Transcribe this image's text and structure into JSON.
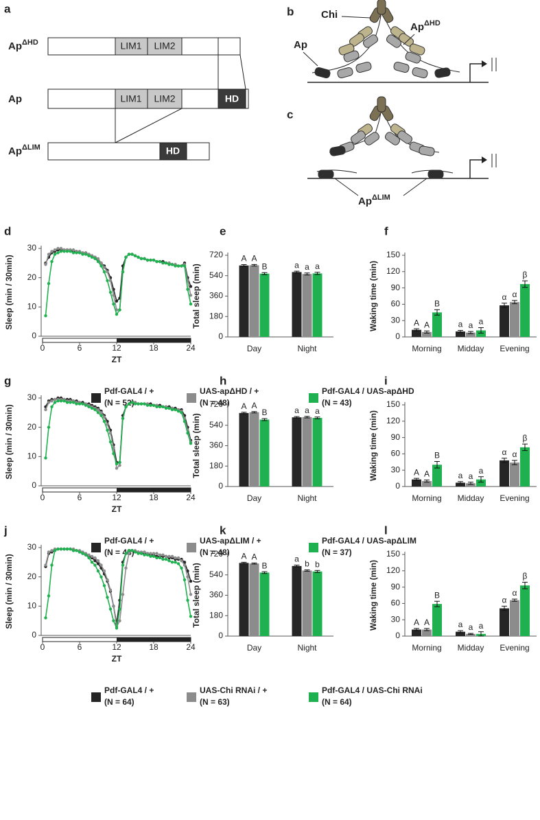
{
  "diagram": {
    "a": {
      "panel": "a",
      "constructs": [
        {
          "name": "Ap",
          "sup": "ΔHD",
          "domains": [
            "LIM1",
            "LIM2"
          ]
        },
        {
          "name": "Ap",
          "domains": [
            "LIM1",
            "LIM2",
            "HD"
          ]
        },
        {
          "name": "Ap",
          "sup": "ΔLIM",
          "domains": [
            "HD"
          ]
        }
      ]
    },
    "b": {
      "panel": "b",
      "chi": "Chi",
      "ap": "Ap",
      "ap_dhd": {
        "name": "Ap",
        "sup": "ΔHD"
      }
    },
    "c": {
      "panel": "c",
      "ap_dlim": {
        "name": "Ap",
        "sup": "ΔLIM"
      }
    }
  },
  "chart_data": [
    {
      "type": "line",
      "panel": "d",
      "ylabel": "Sleep (min / 30min)",
      "xlabel": "ZT",
      "xlim": [
        0,
        24
      ],
      "xticks": [
        0,
        6,
        12,
        18,
        24
      ],
      "ylim": [
        0,
        30
      ],
      "yticks": [
        0,
        10,
        20,
        30
      ],
      "dark_phase": [
        12,
        24
      ],
      "x": [
        0.5,
        1,
        1.5,
        2,
        2.5,
        3,
        3.5,
        4,
        4.5,
        5,
        5.5,
        6,
        6.5,
        7,
        7.5,
        8,
        8.5,
        9,
        9.5,
        10,
        10.5,
        11,
        11.5,
        12,
        12.5,
        13,
        13.5,
        14,
        14.5,
        15,
        15.5,
        16,
        16.5,
        17,
        17.5,
        18,
        18.5,
        19,
        19.5,
        20,
        20.5,
        21,
        21.5,
        22,
        22.5,
        23,
        23.5,
        24
      ],
      "series": [
        {
          "name": "Pdf-GAL4 / +",
          "n_label": "(N = 52)",
          "color": "#262626",
          "values": [
            25,
            27,
            28.5,
            29,
            29.5,
            29.5,
            29.5,
            29.5,
            29.5,
            29,
            29,
            28.8,
            28.5,
            28.5,
            28,
            27.5,
            27,
            26,
            25,
            24,
            22.5,
            20,
            16,
            12,
            13,
            24,
            27,
            28,
            28,
            27.5,
            27,
            26.5,
            26.5,
            26,
            26,
            26,
            25.5,
            25.5,
            25.5,
            25,
            25,
            24.5,
            24.5,
            24,
            24,
            25,
            20,
            17
          ]
        },
        {
          "name": "UAS-apΔHD / +",
          "n_label": "(N = 48)",
          "color": "#8c8c8c",
          "values": [
            24.5,
            28,
            29,
            29.5,
            30,
            30,
            29.5,
            29.5,
            29.5,
            29.5,
            29,
            29,
            28.5,
            28.5,
            28,
            27.5,
            27,
            26.5,
            25,
            23.5,
            22,
            19,
            14,
            9,
            9,
            22,
            27,
            28,
            28,
            27.5,
            27,
            26.5,
            26.5,
            26,
            26,
            26,
            25.5,
            25.5,
            25,
            25,
            25,
            24.5,
            24.5,
            24,
            24,
            24.5,
            19,
            14
          ]
        },
        {
          "name": "Pdf-GAL4 / UAS-apΔHD",
          "n_label": "(N = 43)",
          "color": "#1fb04f",
          "values": [
            7,
            18,
            25.5,
            28,
            28.5,
            29,
            29,
            29,
            29,
            28.5,
            28.5,
            28.5,
            28,
            28,
            27.5,
            27,
            26.5,
            25.5,
            24,
            22,
            19,
            15,
            11,
            7.5,
            9,
            22,
            27,
            28,
            28,
            27.5,
            27,
            26.5,
            26.5,
            26,
            26,
            26,
            25.5,
            25.5,
            25,
            25,
            24.5,
            24.5,
            24,
            24,
            24,
            24,
            16,
            11
          ]
        }
      ]
    },
    {
      "type": "bar",
      "panel": "e",
      "ylabel": "Total sleep (min)",
      "categories": [
        "Day",
        "Night"
      ],
      "ylim": [
        0,
        720
      ],
      "yticks": [
        0,
        180,
        360,
        540,
        720
      ],
      "series": [
        {
          "color": "#262626",
          "values": [
            630,
            572
          ],
          "errors": [
            8,
            8
          ],
          "letters": [
            "A",
            "a"
          ]
        },
        {
          "color": "#8c8c8c",
          "values": [
            632,
            555
          ],
          "errors": [
            7,
            9
          ],
          "letters": [
            "A",
            "a"
          ]
        },
        {
          "color": "#1fb04f",
          "values": [
            558,
            560
          ],
          "errors": [
            9,
            10
          ],
          "letters": [
            "B",
            "a"
          ]
        }
      ]
    },
    {
      "type": "bar",
      "panel": "f",
      "ylabel": "Waking time (min)",
      "categories": [
        "Morning",
        "Midday",
        "Evening"
      ],
      "ylim": [
        0,
        150
      ],
      "yticks": [
        0,
        30,
        60,
        90,
        120,
        150
      ],
      "series": [
        {
          "color": "#262626",
          "values": [
            13,
            10,
            58
          ],
          "errors": [
            2,
            2,
            4
          ],
          "letters": [
            "A",
            "a",
            "α"
          ]
        },
        {
          "color": "#8c8c8c",
          "values": [
            9,
            8,
            64
          ],
          "errors": [
            2,
            2,
            3
          ],
          "letters": [
            "A",
            "a",
            "α"
          ]
        },
        {
          "color": "#1fb04f",
          "values": [
            45,
            12,
            97
          ],
          "errors": [
            5,
            5,
            6
          ],
          "letters": [
            "B",
            "a",
            "β"
          ]
        }
      ]
    },
    {
      "type": "line",
      "panel": "g",
      "ylabel": "Sleep (min / 30min)",
      "xlabel": "ZT",
      "xlim": [
        0,
        24
      ],
      "xticks": [
        0,
        6,
        12,
        18,
        24
      ],
      "ylim": [
        0,
        30
      ],
      "yticks": [
        0,
        10,
        20,
        30
      ],
      "dark_phase": [
        12,
        24
      ],
      "x": [
        0.5,
        1,
        1.5,
        2,
        2.5,
        3,
        3.5,
        4,
        4.5,
        5,
        5.5,
        6,
        6.5,
        7,
        7.5,
        8,
        8.5,
        9,
        9.5,
        10,
        10.5,
        11,
        11.5,
        12,
        12.5,
        13,
        13.5,
        14,
        14.5,
        15,
        15.5,
        16,
        16.5,
        17,
        17.5,
        18,
        18.5,
        19,
        19.5,
        20,
        20.5,
        21,
        21.5,
        22,
        22.5,
        23,
        23.5,
        24
      ],
      "series": [
        {
          "name": "Pdf-GAL4 / +",
          "n_label": "(N = 48)",
          "color": "#262626",
          "values": [
            27,
            29,
            29.5,
            29.5,
            30,
            30,
            29.5,
            29.5,
            29.5,
            29,
            29,
            28.5,
            28.5,
            28,
            28,
            27.5,
            27,
            26.5,
            25.5,
            24,
            22,
            19,
            14,
            8,
            8,
            24,
            27,
            28,
            28.5,
            28.5,
            28,
            28,
            28,
            28,
            28,
            27.5,
            27.5,
            27.5,
            27,
            27,
            27,
            26.5,
            26.5,
            26,
            26,
            24,
            20,
            15.5
          ]
        },
        {
          "name": "UAS-apΔLIM / +",
          "n_label": "(N = 48)",
          "color": "#8c8c8c",
          "values": [
            26,
            28.5,
            29,
            29.5,
            29.5,
            29.5,
            29.5,
            29,
            29,
            29,
            28.5,
            28.5,
            28,
            28,
            27.5,
            27,
            26.5,
            26,
            25,
            23.5,
            21,
            18,
            13,
            6,
            7,
            23,
            27,
            28,
            28.5,
            28.5,
            28,
            28,
            28,
            28,
            27.5,
            27.5,
            27.5,
            27,
            27,
            27,
            26.5,
            26.5,
            26,
            26,
            25.5,
            23,
            19,
            15
          ]
        },
        {
          "name": "Pdf-GAL4 / UAS-apΔLIM",
          "n_label": "(N = 37)",
          "color": "#1fb04f",
          "values": [
            9.5,
            20,
            27,
            28.5,
            29,
            29,
            29,
            28.5,
            28.5,
            28.5,
            28,
            28,
            28,
            27.5,
            27,
            26.5,
            26,
            25,
            24,
            22,
            19,
            15,
            11,
            7.5,
            8,
            23,
            27,
            28,
            28.5,
            28,
            28,
            28,
            28,
            27.5,
            27.5,
            27.5,
            27,
            27,
            27,
            26.5,
            26.5,
            26,
            26,
            25.5,
            25,
            22,
            18,
            14.5
          ]
        }
      ]
    },
    {
      "type": "bar",
      "panel": "h",
      "ylabel": "Total sleep (min)",
      "categories": [
        "Day",
        "Night"
      ],
      "ylim": [
        0,
        720
      ],
      "yticks": [
        0,
        180,
        360,
        540,
        720
      ],
      "series": [
        {
          "color": "#262626",
          "values": [
            648,
            610
          ],
          "errors": [
            7,
            7
          ],
          "letters": [
            "A",
            "a"
          ]
        },
        {
          "color": "#8c8c8c",
          "values": [
            655,
            612
          ],
          "errors": [
            6,
            7
          ],
          "letters": [
            "A",
            "a"
          ]
        },
        {
          "color": "#1fb04f",
          "values": [
            590,
            605
          ],
          "errors": [
            9,
            8
          ],
          "letters": [
            "B",
            "a"
          ]
        }
      ]
    },
    {
      "type": "bar",
      "panel": "i",
      "ylabel": "Waking time (min)",
      "categories": [
        "Morning",
        "Midday",
        "Evening"
      ],
      "ylim": [
        0,
        150
      ],
      "yticks": [
        0,
        30,
        60,
        90,
        120,
        150
      ],
      "series": [
        {
          "color": "#262626",
          "values": [
            13,
            7,
            48
          ],
          "errors": [
            2,
            2,
            4
          ],
          "letters": [
            "A",
            "a",
            "α"
          ]
        },
        {
          "color": "#8c8c8c",
          "values": [
            10,
            6,
            44
          ],
          "errors": [
            2,
            2,
            4
          ],
          "letters": [
            "A",
            "a",
            "α"
          ]
        },
        {
          "color": "#1fb04f",
          "values": [
            40,
            13,
            72
          ],
          "errors": [
            6,
            5,
            6
          ],
          "letters": [
            "B",
            "a",
            "β"
          ]
        }
      ]
    },
    {
      "type": "line",
      "panel": "j",
      "ylabel": "Sleep (min / 30min)",
      "xlabel": "ZT",
      "xlim": [
        0,
        24
      ],
      "xticks": [
        0,
        6,
        12,
        18,
        24
      ],
      "ylim": [
        0,
        30
      ],
      "yticks": [
        0,
        10,
        20,
        30
      ],
      "dark_phase": [
        12,
        24
      ],
      "x": [
        0.5,
        1,
        1.5,
        2,
        2.5,
        3,
        3.5,
        4,
        4.5,
        5,
        5.5,
        6,
        6.5,
        7,
        7.5,
        8,
        8.5,
        9,
        9.5,
        10,
        10.5,
        11,
        11.5,
        12,
        12.5,
        13,
        13.5,
        14,
        14.5,
        15,
        15.5,
        16,
        16.5,
        17,
        17.5,
        18,
        18.5,
        19,
        19.5,
        20,
        20.5,
        21,
        21.5,
        22,
        22.5,
        23,
        23.5,
        24
      ],
      "series": [
        {
          "name": "Pdf-GAL4 / +",
          "n_label": "(N = 64)",
          "color": "#262626",
          "values": [
            23.5,
            28,
            28.5,
            29,
            29.5,
            29.5,
            29.5,
            29.5,
            29.5,
            29,
            29,
            28.5,
            28,
            27.5,
            27,
            26.5,
            25.5,
            24.5,
            23,
            21,
            18.5,
            15,
            10,
            4,
            12,
            25,
            28,
            29,
            29,
            28.5,
            28.5,
            28,
            28,
            28,
            27.5,
            27.5,
            27,
            27,
            27,
            27,
            26.5,
            26.5,
            26,
            26,
            26,
            25,
            22,
            18.5
          ]
        },
        {
          "name": "UAS-Chi RNAi / +",
          "n_label": "(N = 63)",
          "color": "#8c8c8c",
          "values": [
            24,
            28.5,
            29,
            29.5,
            29.5,
            29.5,
            29.5,
            29.5,
            29.5,
            29.5,
            29,
            29,
            28.5,
            28,
            27.5,
            27,
            26.5,
            25.5,
            24,
            22,
            19,
            15.5,
            10,
            3,
            5,
            14,
            23,
            28,
            29,
            29,
            28.5,
            28.5,
            28.5,
            28,
            28,
            28,
            28,
            27.5,
            27.5,
            27,
            27,
            27,
            26.5,
            26.5,
            25.5,
            24,
            20,
            14
          ]
        },
        {
          "name": "Pdf-GAL4 / UAS-Chi RNAi",
          "n_label": "(N = 64)",
          "color": "#1fb04f",
          "values": [
            6,
            13.5,
            24,
            29,
            29.5,
            29.5,
            29.5,
            29.5,
            29.5,
            29,
            29,
            28.5,
            28,
            27.5,
            26.5,
            25,
            24,
            22,
            20,
            17,
            13,
            9,
            5,
            2.5,
            9,
            24,
            28,
            29,
            29,
            28.5,
            28,
            28,
            27.5,
            27.5,
            27,
            27,
            26.5,
            26.5,
            26,
            26,
            25.5,
            25,
            25,
            24.5,
            23,
            19,
            12,
            6.5
          ]
        }
      ]
    },
    {
      "type": "bar",
      "panel": "k",
      "ylabel": "Total sleep (min)",
      "categories": [
        "Day",
        "Night"
      ],
      "ylim": [
        0,
        720
      ],
      "yticks": [
        0,
        180,
        360,
        540,
        720
      ],
      "series": [
        {
          "color": "#262626",
          "values": [
            645,
            618
          ],
          "errors": [
            6,
            8
          ],
          "letters": [
            "A",
            "a"
          ]
        },
        {
          "color": "#8c8c8c",
          "values": [
            640,
            578
          ],
          "errors": [
            5,
            6
          ],
          "letters": [
            "A",
            "b"
          ]
        },
        {
          "color": "#1fb04f",
          "values": [
            560,
            570
          ],
          "errors": [
            8,
            9
          ],
          "letters": [
            "B",
            "b"
          ]
        }
      ]
    },
    {
      "type": "bar",
      "panel": "l",
      "ylabel": "Waking time (min)",
      "categories": [
        "Morning",
        "Midday",
        "Evening"
      ],
      "ylim": [
        0,
        150
      ],
      "yticks": [
        0,
        30,
        60,
        90,
        120,
        150
      ],
      "series": [
        {
          "color": "#262626",
          "values": [
            12,
            8,
            51
          ],
          "errors": [
            2,
            2,
            4
          ],
          "letters": [
            "A",
            "a",
            "α"
          ]
        },
        {
          "color": "#8c8c8c",
          "values": [
            12,
            4,
            66
          ],
          "errors": [
            2,
            1,
            2
          ],
          "letters": [
            "A",
            "a",
            "α"
          ]
        },
        {
          "color": "#1fb04f",
          "values": [
            59,
            4,
            93
          ],
          "errors": [
            5,
            4,
            6
          ],
          "letters": [
            "B",
            "a",
            "β"
          ]
        }
      ]
    }
  ]
}
